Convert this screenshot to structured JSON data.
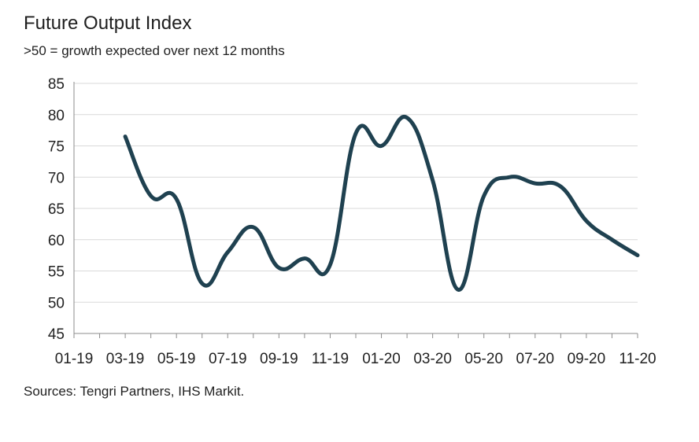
{
  "chart_data": {
    "type": "line",
    "title": "Future Output Index",
    "subtitle": ">50 = growth expected over next 12 months",
    "source": "Sources: Tengri Partners, IHS Markit.",
    "xlabel": "",
    "ylabel": "",
    "x_tick_labels": [
      "01-19",
      "03-19",
      "05-19",
      "07-19",
      "09-19",
      "11-19",
      "01-20",
      "03-20",
      "05-20",
      "07-20",
      "09-20",
      "11-20"
    ],
    "y_ticks": [
      45,
      50,
      55,
      60,
      65,
      70,
      75,
      80,
      85
    ],
    "ylim": [
      45,
      85
    ],
    "grid": "horizontal",
    "line_color": "#1f4150",
    "series": [
      {
        "x": [
          "03-19",
          "04-19",
          "05-19",
          "06-19",
          "07-19",
          "08-19",
          "09-19",
          "10-19",
          "11-19",
          "12-19",
          "01-20",
          "02-20",
          "03-20",
          "04-20",
          "05-20",
          "06-20",
          "07-20",
          "08-20",
          "09-20",
          "10-20",
          "11-20"
        ],
        "values": [
          76.5,
          67.0,
          66.5,
          53.0,
          58.0,
          62.0,
          55.5,
          57.0,
          56.0,
          77.0,
          75.0,
          79.5,
          69.5,
          52.0,
          67.0,
          70.0,
          69.0,
          68.5,
          63.0,
          60.0,
          57.5
        ]
      }
    ]
  }
}
